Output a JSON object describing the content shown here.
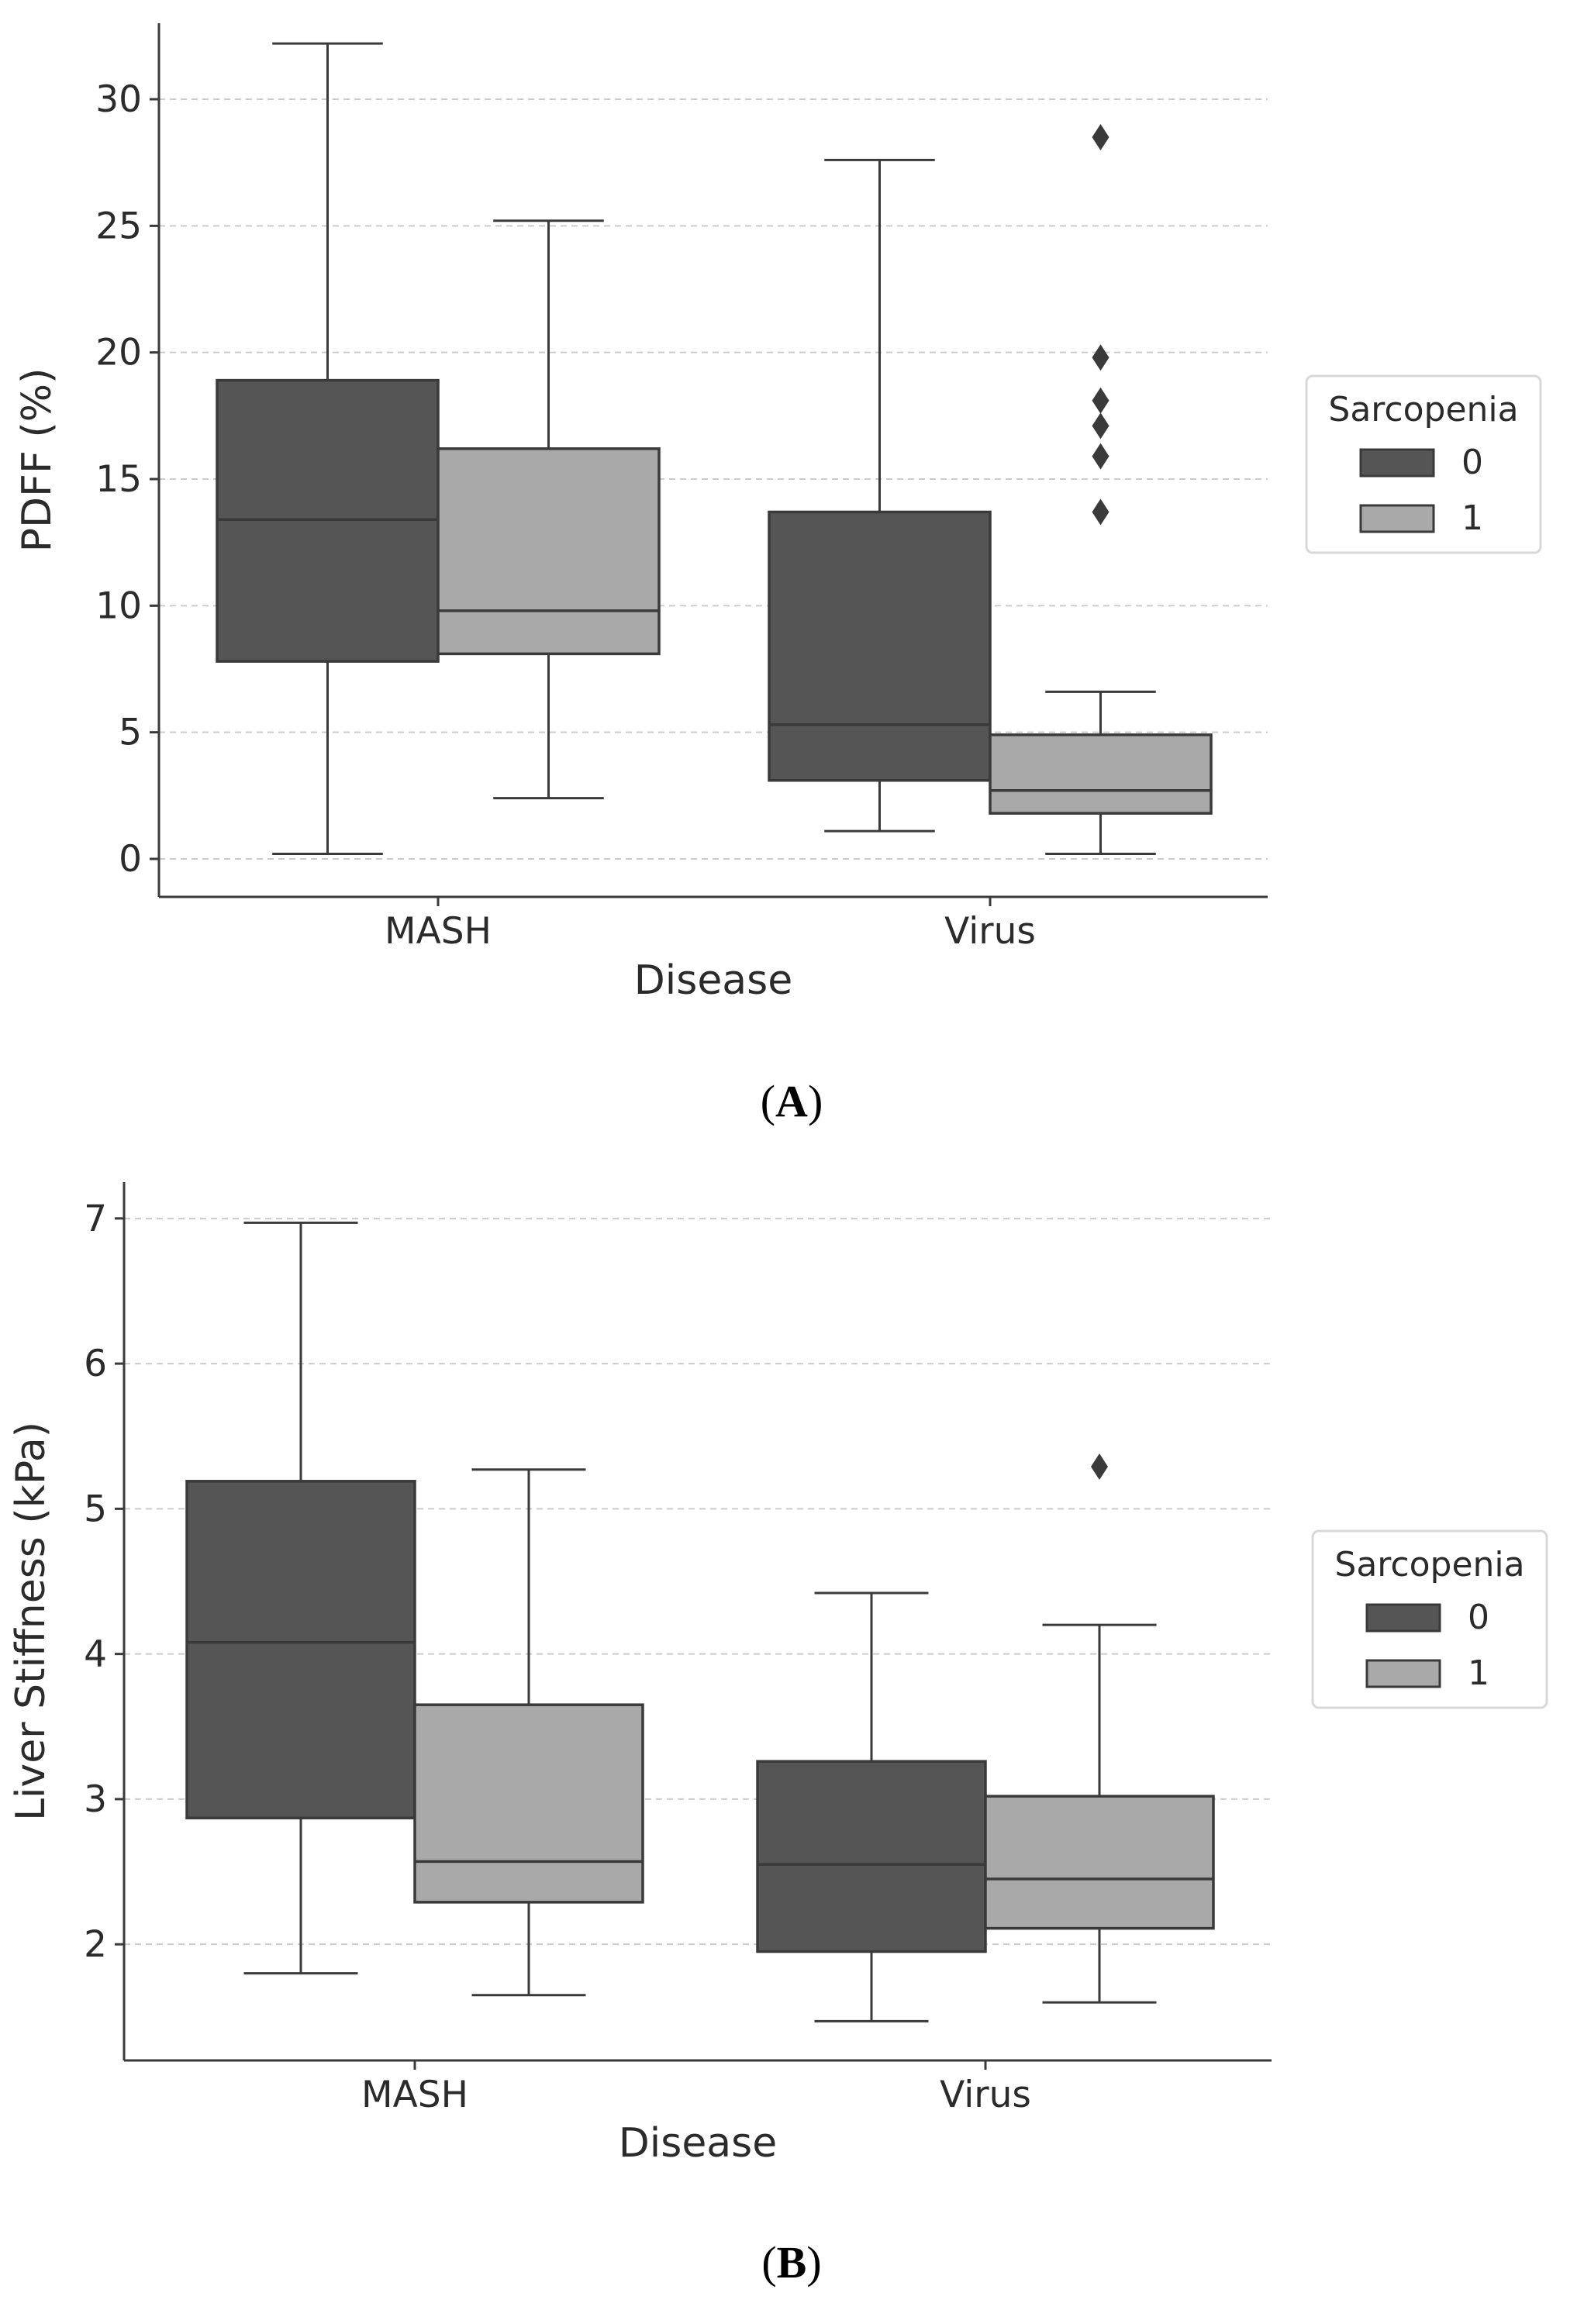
{
  "chart_data": [
    {
      "type": "box",
      "panel_label": "A",
      "xlabel": "Disease",
      "ylabel": "PDFF (%)",
      "categories": [
        "MASH",
        "Virus"
      ],
      "ylim": [
        -1.5,
        33
      ],
      "yticks": [
        0,
        5,
        10,
        15,
        20,
        25,
        30
      ],
      "grid": "horizontal dashed",
      "legend": {
        "title": "Sarcopenia",
        "position": "right",
        "entries": [
          "0",
          "1"
        ]
      },
      "series": [
        {
          "name": "0",
          "color": "#555555",
          "boxes": [
            {
              "category": "MASH",
              "whisker_low": 0.2,
              "q1": 7.8,
              "median": 13.4,
              "q3": 18.9,
              "whisker_high": 32.2,
              "outliers": []
            },
            {
              "category": "Virus",
              "whisker_low": 1.1,
              "q1": 3.1,
              "median": 5.3,
              "q3": 13.7,
              "whisker_high": 27.6,
              "outliers": []
            }
          ]
        },
        {
          "name": "1",
          "color": "#a9a9a9",
          "boxes": [
            {
              "category": "MASH",
              "whisker_low": 2.4,
              "q1": 8.1,
              "median": 9.8,
              "q3": 16.2,
              "whisker_high": 25.2,
              "outliers": []
            },
            {
              "category": "Virus",
              "whisker_low": 0.2,
              "q1": 1.8,
              "median": 2.7,
              "q3": 4.9,
              "whisker_high": 6.6,
              "outliers": [
                13.7,
                15.9,
                17.1,
                18.1,
                19.8,
                28.5
              ]
            }
          ]
        }
      ]
    },
    {
      "type": "box",
      "panel_label": "B",
      "xlabel": "Disease",
      "ylabel": "Liver Stiffness (kPa)",
      "categories": [
        "MASH",
        "Virus"
      ],
      "ylim": [
        1.2,
        7.25
      ],
      "yticks": [
        2,
        3,
        4,
        5,
        6,
        7
      ],
      "grid": "horizontal dashed",
      "legend": {
        "title": "Sarcopenia",
        "position": "right",
        "entries": [
          "0",
          "1"
        ]
      },
      "series": [
        {
          "name": "0",
          "color": "#555555",
          "boxes": [
            {
              "category": "MASH",
              "whisker_low": 1.8,
              "q1": 2.87,
              "median": 4.08,
              "q3": 5.19,
              "whisker_high": 6.97,
              "outliers": []
            },
            {
              "category": "Virus",
              "whisker_low": 1.47,
              "q1": 1.95,
              "median": 2.55,
              "q3": 3.26,
              "whisker_high": 4.42,
              "outliers": []
            }
          ]
        },
        {
          "name": "1",
          "color": "#a9a9a9",
          "boxes": [
            {
              "category": "MASH",
              "whisker_low": 1.65,
              "q1": 2.29,
              "median": 2.57,
              "q3": 3.65,
              "whisker_high": 5.27,
              "outliers": []
            },
            {
              "category": "Virus",
              "whisker_low": 1.6,
              "q1": 2.11,
              "median": 2.45,
              "q3": 3.02,
              "whisker_high": 4.2,
              "outliers": [
                5.29
              ]
            }
          ]
        }
      ]
    }
  ]
}
